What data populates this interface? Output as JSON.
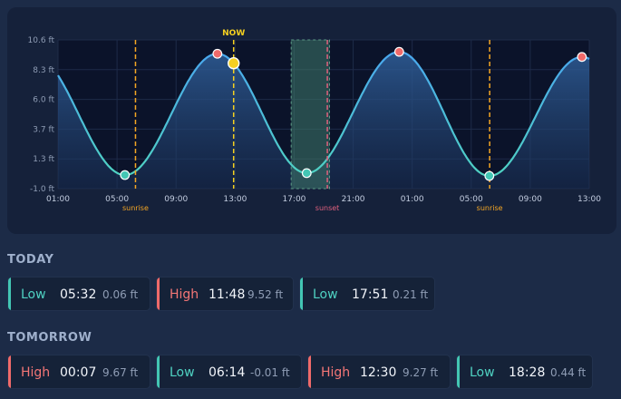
{
  "chart_data": {
    "type": "area",
    "y_ticks": [
      "10.6 ft",
      "8.3 ft",
      "6.0 ft",
      "3.7 ft",
      "1.3 ft",
      "-1.0 ft"
    ],
    "ylim": [
      -1.0,
      10.6
    ],
    "x_ticks": [
      "01:00",
      "05:00",
      "09:00",
      "13:00",
      "17:00",
      "21:00",
      "01:00",
      "05:00",
      "09:00",
      "13:00"
    ],
    "xlim_hours": [
      1,
      37
    ],
    "now_label": "NOW",
    "now_hour": 12.9,
    "sunrise_label": "sunrise",
    "sunset_label": "sunset",
    "sunrise_hours": [
      6.25,
      30.25
    ],
    "sunset_hour": 19.25,
    "highlight_hours": [
      16.8,
      19.4
    ],
    "extremes": [
      {
        "hour": 5.53,
        "value": 0.06,
        "kind": "low"
      },
      {
        "hour": 11.8,
        "value": 9.52,
        "kind": "high"
      },
      {
        "hour": 17.85,
        "value": 0.21,
        "kind": "low"
      },
      {
        "hour": 24.12,
        "value": 9.67,
        "kind": "high"
      },
      {
        "hour": 30.23,
        "value": -0.01,
        "kind": "low"
      },
      {
        "hour": 36.5,
        "value": 9.27,
        "kind": "high"
      },
      {
        "hour": 42.47,
        "value": 0.44,
        "kind": "low"
      }
    ],
    "grid": true
  },
  "sections": {
    "today_label": "TODAY",
    "tomorrow_label": "TOMORROW"
  },
  "today": [
    {
      "type": "Low",
      "time": "05:32",
      "height": "0.06 ft"
    },
    {
      "type": "High",
      "time": "11:48",
      "height": "9.52 ft"
    },
    {
      "type": "Low",
      "time": "17:51",
      "height": "0.21 ft"
    }
  ],
  "tomorrow": [
    {
      "type": "High",
      "time": "00:07",
      "height": "9.67 ft"
    },
    {
      "type": "Low",
      "time": "06:14",
      "height": "-0.01 ft"
    },
    {
      "type": "High",
      "time": "12:30",
      "height": "9.27 ft"
    },
    {
      "type": "Low",
      "time": "18:28",
      "height": "0.44 ft"
    }
  ],
  "colors": {
    "curve": "#4fb8e8",
    "low": "#43c6b4",
    "high": "#f06a6a",
    "now": "#f5d020",
    "sunrise": "#f5a623",
    "sunset": "#e0607e",
    "highlight": "#3f7a6a"
  }
}
